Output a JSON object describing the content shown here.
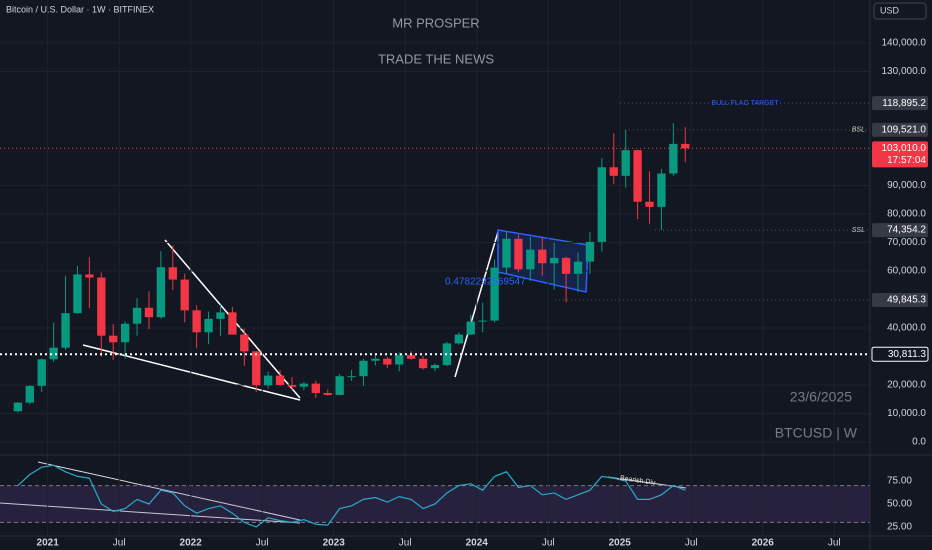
{
  "header": {
    "symbol": "Bitcoin / U.S. Dollar · 1W · BITFINEX",
    "currency": "USD"
  },
  "chart_data": [
    {
      "type": "candlestick",
      "title": "MR PROSPER",
      "subtitle": "TRADE THE NEWS",
      "date_label": "23/6/2025",
      "ticker_label": "BTCUSD | W",
      "fib_label": "0.4782292569547",
      "up_color": "#089981",
      "down_color": "#f23645",
      "x": [
        "2020-10",
        "2020-11",
        "2020-12",
        "2021-01",
        "2021-02",
        "2021-03",
        "2021-04",
        "2021-05",
        "2021-06",
        "2021-07",
        "2021-08",
        "2021-09",
        "2021-10",
        "2021-11",
        "2021-12",
        "2022-01",
        "2022-02",
        "2022-03",
        "2022-04",
        "2022-05",
        "2022-06",
        "2022-07",
        "2022-08",
        "2022-09",
        "2022-10",
        "2022-11",
        "2022-12",
        "2023-01",
        "2023-02",
        "2023-03",
        "2023-04",
        "2023-05",
        "2023-06",
        "2023-07",
        "2023-08",
        "2023-09",
        "2023-10",
        "2023-11",
        "2023-12",
        "2024-01",
        "2024-02",
        "2024-03",
        "2024-04",
        "2024-05",
        "2024-06",
        "2024-07",
        "2024-08",
        "2024-09",
        "2024-10",
        "2024-11",
        "2024-12",
        "2025-01",
        "2025-02",
        "2025-03",
        "2025-04",
        "2025-05",
        "2025-06"
      ],
      "open": [
        10800,
        13800,
        19700,
        29000,
        33100,
        45200,
        58800,
        57700,
        37300,
        35000,
        41500,
        47100,
        43800,
        61300,
        57000,
        46200,
        38500,
        43200,
        45500,
        37700,
        31800,
        19900,
        23300,
        20000,
        19400,
        20500,
        17200,
        16500,
        23100,
        23100,
        28500,
        29200,
        27200,
        30500,
        29200,
        25900,
        27000,
        34600,
        37700,
        42300,
        42600,
        61200,
        71300,
        60600,
        67500,
        62700,
        64600,
        59000,
        63300,
        70200,
        96400,
        93400,
        102400,
        84300,
        82500,
        94200,
        104600
      ],
      "high": [
        14000,
        19900,
        29300,
        41900,
        58300,
        61800,
        64900,
        59500,
        41300,
        42300,
        50500,
        52900,
        67000,
        69000,
        59100,
        48000,
        45800,
        48200,
        47400,
        39800,
        31900,
        24700,
        25200,
        22800,
        21100,
        21500,
        18400,
        23900,
        25300,
        29200,
        31000,
        29900,
        31400,
        31800,
        30200,
        27500,
        35200,
        38400,
        44700,
        48900,
        64000,
        73800,
        72800,
        72000,
        71900,
        70000,
        65100,
        66500,
        73600,
        99600,
        108300,
        109600,
        102500,
        95000,
        95800,
        111900,
        110500
      ],
      "low": [
        10400,
        13200,
        17600,
        28100,
        32300,
        45000,
        47000,
        30000,
        28800,
        29300,
        37300,
        39600,
        43300,
        53300,
        42000,
        32900,
        34300,
        37200,
        37700,
        26700,
        17600,
        18800,
        19600,
        18100,
        18200,
        15500,
        16300,
        16500,
        21400,
        19600,
        26900,
        25900,
        24800,
        28900,
        25400,
        24900,
        26600,
        34100,
        37600,
        38500,
        41900,
        59000,
        59600,
        56500,
        58400,
        53500,
        49000,
        52600,
        58900,
        66800,
        90500,
        89200,
        78200,
        76600,
        74400,
        93400,
        98200
      ],
      "close": [
        13800,
        19700,
        29000,
        33100,
        45200,
        58800,
        57700,
        37300,
        35000,
        41500,
        47100,
        43800,
        61300,
        57000,
        46200,
        38500,
        43200,
        45500,
        37700,
        31800,
        19900,
        23300,
        20000,
        19400,
        20500,
        17200,
        16500,
        23100,
        23100,
        28500,
        29200,
        27200,
        30500,
        29200,
        25900,
        27000,
        34600,
        37700,
        42300,
        42600,
        61200,
        71300,
        60600,
        67500,
        62700,
        64600,
        59000,
        63300,
        70200,
        96400,
        93400,
        102400,
        84300,
        82500,
        94200,
        104600,
        103010
      ],
      "xlim": [
        "2020-09",
        "2026-10"
      ],
      "xticks": [
        {
          "value": "2021-01",
          "label": "2021"
        },
        {
          "value": "2021-07",
          "label": "Jul"
        },
        {
          "value": "2022-01",
          "label": "2022"
        },
        {
          "value": "2022-07",
          "label": "Jul"
        },
        {
          "value": "2023-01",
          "label": "2023"
        },
        {
          "value": "2023-07",
          "label": "Jul"
        },
        {
          "value": "2024-01",
          "label": "2024"
        },
        {
          "value": "2024-07",
          "label": "Jul"
        },
        {
          "value": "2025-01",
          "label": "2025"
        },
        {
          "value": "2025-07",
          "label": "Jul"
        },
        {
          "value": "2026-01",
          "label": "2026"
        },
        {
          "value": "2026-07",
          "label": "Jul"
        }
      ],
      "ylim": [
        -4560,
        155090
      ],
      "yticks": [
        {
          "value": 0,
          "label": "0.0"
        },
        {
          "value": 10000,
          "label": "10,000.0"
        },
        {
          "value": 20000,
          "label": "20,000.0"
        },
        {
          "value": 40000,
          "label": "40,000.0"
        },
        {
          "value": 60000,
          "label": "60,000.0"
        },
        {
          "value": 70000,
          "label": "70,000.0"
        },
        {
          "value": 80000,
          "label": "80,000.0"
        },
        {
          "value": 90000,
          "label": "90,000.0"
        },
        {
          "value": 130000,
          "label": "130,000.0"
        },
        {
          "value": 140000,
          "label": "140,000.0"
        }
      ],
      "levels": [
        {
          "value": 118895.2,
          "label": "118,895.2",
          "note": "BULL FLAG TARGET"
        },
        {
          "value": 109521,
          "label": "109,521.0",
          "note": "BSL"
        },
        {
          "value": 103010,
          "label": "103,010.0",
          "countdown": "17:57:04"
        },
        {
          "value": 74354.2,
          "label": "74,354.2",
          "note": "SSL"
        },
        {
          "value": 49845.3,
          "label": "49,845.3"
        },
        {
          "value": 30811.3,
          "label": "30,811.3"
        }
      ]
    },
    {
      "type": "line",
      "name": "RSI",
      "color": "#2aa9c9",
      "divergence_label": "Bearish Div",
      "band": [
        30,
        70
      ],
      "values": [
        70,
        82,
        90,
        92,
        85,
        80,
        78,
        50,
        42,
        45,
        55,
        50,
        65,
        62,
        48,
        40,
        45,
        48,
        40,
        30,
        25,
        35,
        32,
        30,
        33,
        28,
        27,
        45,
        48,
        55,
        57,
        52,
        58,
        55,
        45,
        50,
        62,
        70,
        72,
        65,
        80,
        85,
        68,
        70,
        60,
        62,
        55,
        60,
        65,
        80,
        78,
        75,
        55,
        55,
        60,
        70,
        65
      ],
      "ylim": [
        16.3,
        97.8
      ],
      "yticks": [
        {
          "value": 25,
          "label": "25.00"
        },
        {
          "value": 50,
          "label": "50.00"
        },
        {
          "value": 75,
          "label": "75.00"
        }
      ]
    }
  ]
}
